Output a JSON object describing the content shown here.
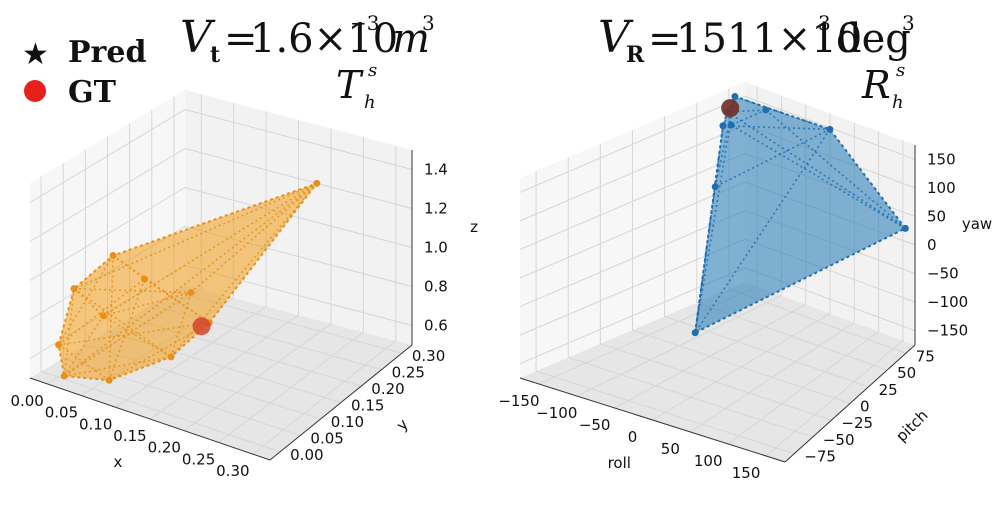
{
  "legend": {
    "placement": "top-left",
    "items": [
      {
        "label": "Pred",
        "marker": "star",
        "color": "#111111"
      },
      {
        "label": "GT",
        "marker": "circle",
        "color": "#e8201a"
      }
    ]
  },
  "chart_data": [
    {
      "type": "scatter3d-hull",
      "title_main": "1.6×10",
      "title_exp": "−3",
      "title_unit": "m",
      "title_unit_exp": "3",
      "title_var": "V",
      "title_sub": "t",
      "subtitle_sym": "T",
      "subtitle_sub": "h",
      "subtitle_sup": "s",
      "color": "#f29c18",
      "edge_color": "#e8901a",
      "gt_color": "#d2442a",
      "xlabel": "x",
      "ylabel": "y",
      "zlabel": "z",
      "xlim": [
        0,
        0.3
      ],
      "ylim": [
        0,
        0.3
      ],
      "zlim": [
        0.5,
        1.5
      ],
      "xticks": [
        "0.00",
        "0.05",
        "0.10",
        "0.15",
        "0.20",
        "0.25",
        "0.30"
      ],
      "yticks": [
        "0.00",
        "0.05",
        "0.10",
        "0.15",
        "0.20",
        "0.25",
        "0.30"
      ],
      "zticks": [
        "0.6",
        "0.8",
        "1.0",
        "1.2",
        "1.4"
      ],
      "points": [
        {
          "x": 0.2,
          "y": 0.26,
          "z": 1.3
        },
        {
          "x": 0.04,
          "y": 0.1,
          "z": 1.02
        },
        {
          "x": 0.01,
          "y": 0.07,
          "z": 0.86
        },
        {
          "x": 0.01,
          "y": 0.04,
          "z": 0.62
        },
        {
          "x": 0.03,
          "y": 0.02,
          "z": 0.52
        },
        {
          "x": 0.08,
          "y": 0.03,
          "z": 0.55
        },
        {
          "x": 0.12,
          "y": 0.09,
          "z": 0.62
        },
        {
          "x": 0.15,
          "y": 0.12,
          "z": 0.78
        },
        {
          "x": 0.06,
          "y": 0.05,
          "z": 0.82
        },
        {
          "x": 0.08,
          "y": 0.1,
          "z": 0.95
        },
        {
          "x": 0.12,
          "y": 0.13,
          "z": 0.88
        }
      ],
      "gt": {
        "x": 0.14,
        "y": 0.12,
        "z": 0.75
      }
    },
    {
      "type": "scatter3d-hull",
      "title_main": "1511×10",
      "title_exp": "3",
      "title_unit": "deg",
      "title_unit_exp": "3",
      "title_var": "V",
      "title_sub": "R",
      "subtitle_sym": "R",
      "subtitle_sub": "h",
      "subtitle_sup": "s",
      "color": "#1f77b4",
      "edge_color": "#1f6fb0",
      "gt_color": "#b8453a",
      "xlabel": "roll",
      "ylabel": "pitch",
      "zlabel": "yaw",
      "xlim": [
        -180,
        180
      ],
      "ylim": [
        -90,
        90
      ],
      "zlim": [
        -180,
        180
      ],
      "xticks": [
        "−150",
        "−100",
        "−50",
        "0",
        "50",
        "100",
        "150"
      ],
      "yticks": [
        "−75",
        "−50",
        "−25",
        "0",
        "25",
        "50",
        "75"
      ],
      "zticks": [
        "−150",
        "−100",
        "−50",
        "0",
        "50",
        "100",
        "150"
      ],
      "points": [
        {
          "x": -175,
          "y": 80,
          "z": 165
        },
        {
          "x": -165,
          "y": 70,
          "z": 150
        },
        {
          "x": -150,
          "y": 60,
          "z": 140
        },
        {
          "x": -100,
          "y": 75,
          "z": 170
        },
        {
          "x": 10,
          "y": 85,
          "z": 160
        },
        {
          "x": 175,
          "y": 80,
          "z": 40
        },
        {
          "x": -10,
          "y": -40,
          "z": -80
        },
        {
          "x": -170,
          "y": 75,
          "z": 120
        },
        {
          "x": -120,
          "y": 40,
          "z": 60
        }
      ],
      "gt": {
        "x": -172,
        "y": 75,
        "z": 150
      }
    }
  ]
}
